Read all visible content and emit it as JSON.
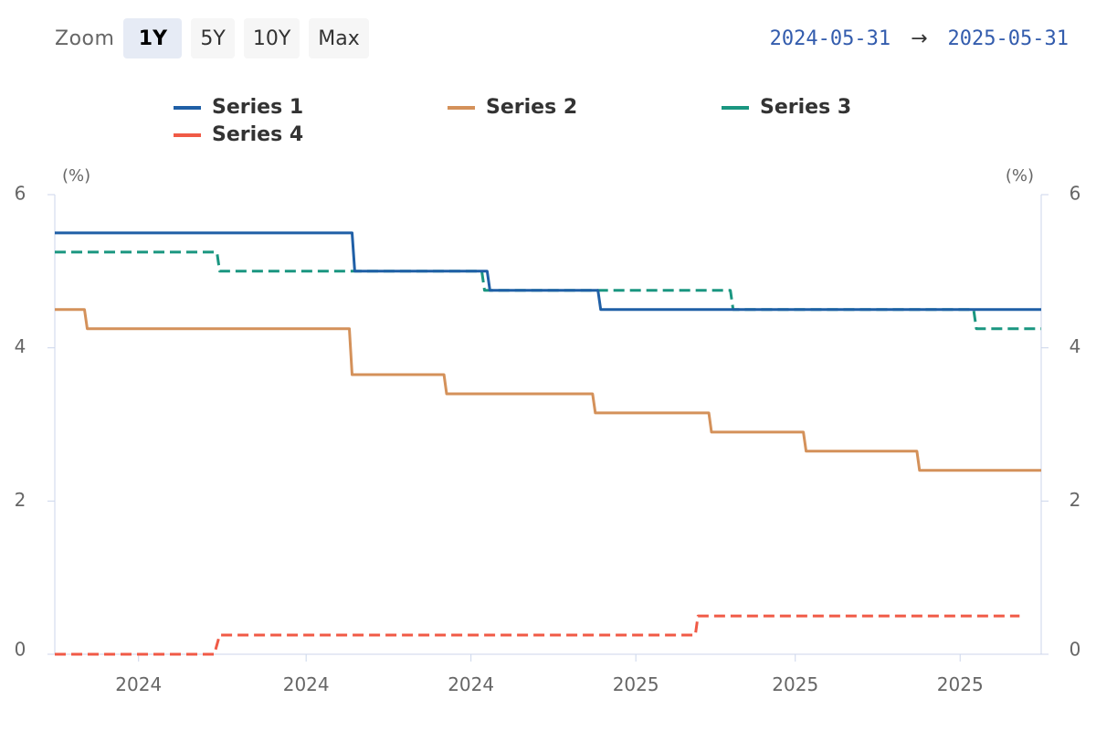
{
  "toolbar": {
    "zoom_label": "Zoom",
    "buttons": [
      {
        "label": "1Y",
        "active": true
      },
      {
        "label": "5Y",
        "active": false
      },
      {
        "label": "10Y",
        "active": false
      },
      {
        "label": "Max",
        "active": false
      }
    ]
  },
  "range": {
    "from": "2024-05-31",
    "arrow": "→",
    "to": "2025-05-31"
  },
  "chart_data": {
    "type": "line",
    "title": "",
    "xlabel": "",
    "ylabel": "(%)",
    "ylabel_right": "(%)",
    "x_range": [
      "2024-05-31",
      "2025-05-31"
    ],
    "xlim_px_ref": null,
    "ylim": [
      0,
      6
    ],
    "yticks": [
      0,
      2,
      4,
      6
    ],
    "xticks": [
      {
        "date": "2024-07-01",
        "label": "2024"
      },
      {
        "date": "2024-09-01",
        "label": "2024"
      },
      {
        "date": "2024-11-01",
        "label": "2024"
      },
      {
        "date": "2025-01-01",
        "label": "2025"
      },
      {
        "date": "2025-03-01",
        "label": "2025"
      },
      {
        "date": "2025-05-01",
        "label": "2025"
      }
    ],
    "grid": false,
    "legend": "top",
    "series": [
      {
        "name": "Series 1",
        "color": "#1f5fa6",
        "dash": "solid",
        "points": [
          [
            "2024-05-31",
            5.5
          ],
          [
            "2024-09-18",
            5.5
          ],
          [
            "2024-09-19",
            5.0
          ],
          [
            "2024-11-07",
            5.0
          ],
          [
            "2024-11-08",
            4.75
          ],
          [
            "2024-12-18",
            4.75
          ],
          [
            "2024-12-19",
            4.5
          ],
          [
            "2025-05-31",
            4.5
          ]
        ]
      },
      {
        "name": "Series 2",
        "color": "#d4915a",
        "dash": "solid",
        "points": [
          [
            "2024-05-31",
            4.5
          ],
          [
            "2024-06-11",
            4.5
          ],
          [
            "2024-06-12",
            4.25
          ],
          [
            "2024-09-17",
            4.25
          ],
          [
            "2024-09-18",
            3.65
          ],
          [
            "2024-10-22",
            3.65
          ],
          [
            "2024-10-23",
            3.4
          ],
          [
            "2024-12-16",
            3.4
          ],
          [
            "2024-12-17",
            3.15
          ],
          [
            "2025-01-28",
            3.15
          ],
          [
            "2025-01-29",
            2.9
          ],
          [
            "2025-03-04",
            2.9
          ],
          [
            "2025-03-05",
            2.65
          ],
          [
            "2025-04-15",
            2.65
          ],
          [
            "2025-04-16",
            2.4
          ],
          [
            "2025-05-31",
            2.4
          ]
        ]
      },
      {
        "name": "Series 3",
        "color": "#1a9680",
        "dash": "dashed",
        "points": [
          [
            "2024-05-31",
            5.25
          ],
          [
            "2024-07-30",
            5.25
          ],
          [
            "2024-07-31",
            5.0
          ],
          [
            "2024-11-05",
            5.0
          ],
          [
            "2024-11-06",
            4.75
          ],
          [
            "2025-02-05",
            4.75
          ],
          [
            "2025-02-06",
            4.5
          ],
          [
            "2025-05-06",
            4.5
          ],
          [
            "2025-05-07",
            4.25
          ],
          [
            "2025-05-31",
            4.25
          ]
        ]
      },
      {
        "name": "Series 4",
        "color": "#f05a46",
        "dash": "dashed",
        "points": [
          [
            "2024-05-31",
            0.0
          ],
          [
            "2024-07-29",
            0.0
          ],
          [
            "2024-07-31",
            0.25
          ],
          [
            "2025-01-23",
            0.25
          ],
          [
            "2025-01-24",
            0.5
          ],
          [
            "2025-05-23",
            0.5
          ]
        ]
      }
    ]
  }
}
